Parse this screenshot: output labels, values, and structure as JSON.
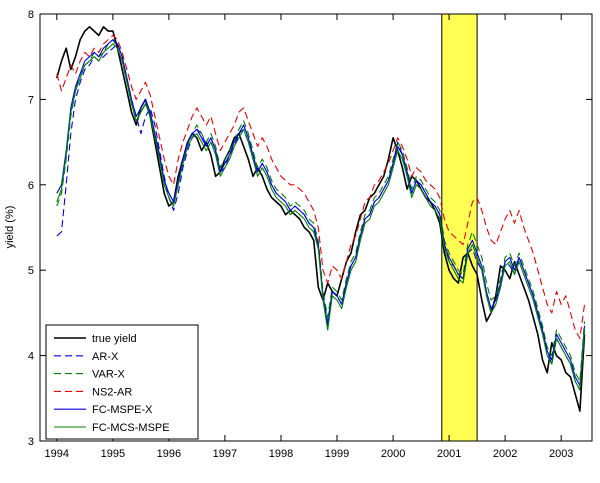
{
  "figure": {
    "background": "#ffffff",
    "ylabel": "yield (%)",
    "x_ticks": [
      1994,
      1995,
      1996,
      1997,
      1998,
      1999,
      2000,
      2001,
      2002,
      2003
    ],
    "y_ticks": [
      3,
      4,
      5,
      6,
      7,
      8
    ],
    "x_range": [
      1993.7,
      2003.55
    ],
    "y_range": [
      3,
      8
    ],
    "highlight_band": {
      "x_start": 2000.87,
      "x_end": 2001.5,
      "color": "#ffff54",
      "border": "#000000"
    },
    "legend_position": "bottom-left"
  },
  "chart_data": {
    "type": "line",
    "title": "",
    "xlabel": "",
    "ylabel": "yield (%)",
    "x_start": 1994.0,
    "points_per_year": 12,
    "x_end": 2003.42,
    "grid": false,
    "legend_position": "bottom-left",
    "series": [
      {
        "name": "true yield",
        "color": "#000000",
        "dash": "solid",
        "width": 1.6,
        "values": [
          7.25,
          7.45,
          7.6,
          7.35,
          7.5,
          7.7,
          7.8,
          7.85,
          7.8,
          7.75,
          7.85,
          7.8,
          7.8,
          7.6,
          7.35,
          7.1,
          6.85,
          6.7,
          6.9,
          7.0,
          6.8,
          6.5,
          6.2,
          5.9,
          5.75,
          5.8,
          6.1,
          6.3,
          6.5,
          6.6,
          6.55,
          6.4,
          6.5,
          6.35,
          6.1,
          6.15,
          6.3,
          6.4,
          6.55,
          6.6,
          6.45,
          6.3,
          6.1,
          6.2,
          6.1,
          5.95,
          5.85,
          5.8,
          5.75,
          5.65,
          5.7,
          5.65,
          5.6,
          5.5,
          5.45,
          5.35,
          4.8,
          4.65,
          4.85,
          4.75,
          4.7,
          4.9,
          5.1,
          5.2,
          5.45,
          5.65,
          5.7,
          5.85,
          5.9,
          6.0,
          6.1,
          6.3,
          6.55,
          6.4,
          6.2,
          5.95,
          6.1,
          6.05,
          5.95,
          5.85,
          5.8,
          5.7,
          5.55,
          5.2,
          5.0,
          4.9,
          4.85,
          5.15,
          5.2,
          5.05,
          4.95,
          4.65,
          4.4,
          4.5,
          4.7,
          5.05,
          5.0,
          4.9,
          5.1,
          4.95,
          4.8,
          4.65,
          4.45,
          4.25,
          3.95,
          3.8,
          4.15,
          4.0,
          3.95,
          3.8,
          3.75,
          3.55,
          3.35,
          4.25
        ]
      },
      {
        "name": "AR-X",
        "color": "#0000ee",
        "dash": "dashed",
        "width": 1.1,
        "values": [
          5.4,
          5.45,
          6.0,
          6.6,
          7.0,
          7.2,
          7.35,
          7.4,
          7.5,
          7.45,
          7.5,
          7.55,
          7.6,
          7.65,
          7.5,
          7.25,
          7.0,
          6.8,
          6.6,
          6.8,
          6.9,
          6.7,
          6.4,
          6.1,
          5.85,
          5.7,
          5.9,
          6.2,
          6.4,
          6.55,
          6.65,
          6.6,
          6.45,
          6.55,
          6.4,
          6.15,
          6.2,
          6.35,
          6.45,
          6.6,
          6.65,
          6.5,
          6.35,
          6.15,
          6.25,
          6.15,
          6.0,
          5.9,
          5.85,
          5.8,
          5.7,
          5.75,
          5.7,
          5.65,
          5.55,
          5.5,
          5.3,
          4.7,
          4.4,
          4.75,
          4.7,
          4.6,
          4.85,
          5.05,
          5.15,
          5.4,
          5.6,
          5.65,
          5.8,
          5.85,
          5.95,
          6.05,
          6.25,
          6.5,
          6.35,
          6.15,
          5.9,
          6.05,
          6.0,
          5.9,
          5.8,
          5.75,
          5.65,
          5.3,
          5.1,
          5.05,
          4.95,
          4.9,
          5.2,
          5.25,
          5.1,
          5.0,
          4.7,
          4.5,
          4.6,
          4.8,
          5.1,
          5.05,
          4.95,
          5.15,
          5.0,
          4.85,
          4.7,
          4.5,
          4.3,
          4.05,
          3.9,
          4.2,
          4.1,
          4.0,
          3.9,
          3.7,
          3.6,
          4.3
        ]
      },
      {
        "name": "VAR-X",
        "color": "#008000",
        "dash": "dashed",
        "width": 1.1,
        "values": [
          5.75,
          5.9,
          6.3,
          6.8,
          7.1,
          7.3,
          7.4,
          7.45,
          7.55,
          7.5,
          7.55,
          7.65,
          7.7,
          7.6,
          7.45,
          7.2,
          6.95,
          6.75,
          6.85,
          6.95,
          6.85,
          6.6,
          6.3,
          6.05,
          5.9,
          5.8,
          6.0,
          6.25,
          6.45,
          6.6,
          6.7,
          6.6,
          6.5,
          6.6,
          6.45,
          6.2,
          6.3,
          6.4,
          6.5,
          6.65,
          6.75,
          6.6,
          6.4,
          6.2,
          6.3,
          6.2,
          6.05,
          5.95,
          5.9,
          5.85,
          5.75,
          5.8,
          5.75,
          5.7,
          5.6,
          5.55,
          5.35,
          4.75,
          4.45,
          4.8,
          4.75,
          4.65,
          4.9,
          5.1,
          5.2,
          5.45,
          5.65,
          5.7,
          5.85,
          5.9,
          6.0,
          6.1,
          6.3,
          6.5,
          6.4,
          6.2,
          5.95,
          6.1,
          6.05,
          5.95,
          5.85,
          5.8,
          5.7,
          5.35,
          5.2,
          5.1,
          5.0,
          4.95,
          5.3,
          5.45,
          5.3,
          5.15,
          4.85,
          4.65,
          4.7,
          4.9,
          5.15,
          5.2,
          5.05,
          5.2,
          5.05,
          4.9,
          4.75,
          4.55,
          4.35,
          4.1,
          4.0,
          4.3,
          4.2,
          4.1,
          4.0,
          3.8,
          3.7,
          4.4
        ]
      },
      {
        "name": "NS2-AR",
        "color": "#ee0000",
        "dash": "dashed",
        "width": 1.1,
        "values": [
          7.3,
          7.1,
          7.25,
          7.4,
          7.3,
          7.45,
          7.55,
          7.5,
          7.6,
          7.55,
          7.65,
          7.7,
          7.75,
          7.7,
          7.55,
          7.35,
          7.15,
          7.0,
          7.1,
          7.2,
          7.05,
          6.8,
          6.55,
          6.3,
          6.1,
          6.0,
          6.3,
          6.5,
          6.65,
          6.8,
          6.9,
          6.8,
          6.7,
          6.8,
          6.6,
          6.4,
          6.5,
          6.6,
          6.7,
          6.85,
          6.9,
          6.75,
          6.6,
          6.45,
          6.55,
          6.45,
          6.3,
          6.2,
          6.1,
          6.05,
          6.0,
          6.0,
          5.95,
          5.9,
          5.8,
          5.7,
          5.5,
          5.0,
          4.85,
          5.05,
          5.0,
          4.9,
          5.1,
          5.3,
          5.4,
          5.6,
          5.8,
          5.85,
          6.0,
          6.05,
          6.15,
          6.25,
          6.4,
          6.55,
          6.45,
          6.3,
          6.1,
          6.2,
          6.15,
          6.05,
          6.0,
          5.95,
          5.85,
          5.6,
          5.45,
          5.4,
          5.35,
          5.3,
          5.55,
          5.8,
          5.85,
          5.7,
          5.5,
          5.35,
          5.3,
          5.45,
          5.6,
          5.7,
          5.55,
          5.7,
          5.5,
          5.35,
          5.2,
          5.0,
          4.8,
          4.6,
          4.5,
          4.75,
          4.6,
          4.7,
          4.5,
          4.3,
          4.2,
          4.6
        ]
      },
      {
        "name": "FC-MSPE-X",
        "color": "#0000ee",
        "dash": "solid",
        "width": 1.1,
        "values": [
          5.9,
          6.0,
          6.4,
          6.9,
          7.15,
          7.3,
          7.45,
          7.5,
          7.55,
          7.5,
          7.6,
          7.65,
          7.7,
          7.65,
          7.5,
          7.25,
          7.0,
          6.8,
          6.9,
          7.0,
          6.85,
          6.6,
          6.35,
          6.05,
          5.9,
          5.8,
          6.05,
          6.3,
          6.5,
          6.6,
          6.65,
          6.55,
          6.45,
          6.55,
          6.4,
          6.15,
          6.25,
          6.35,
          6.5,
          6.6,
          6.7,
          6.55,
          6.35,
          6.15,
          6.25,
          6.15,
          6.0,
          5.9,
          5.85,
          5.8,
          5.7,
          5.75,
          5.7,
          5.65,
          5.55,
          5.5,
          5.3,
          4.7,
          4.35,
          4.75,
          4.7,
          4.6,
          4.85,
          5.05,
          5.15,
          5.4,
          5.6,
          5.65,
          5.8,
          5.85,
          5.95,
          6.05,
          6.25,
          6.45,
          6.35,
          6.15,
          5.9,
          6.05,
          6.0,
          5.9,
          5.8,
          5.75,
          5.65,
          5.3,
          5.15,
          5.05,
          4.95,
          4.9,
          5.25,
          5.35,
          5.2,
          5.05,
          4.75,
          4.55,
          4.65,
          4.85,
          5.1,
          5.15,
          5.0,
          5.15,
          5.0,
          4.85,
          4.7,
          4.5,
          4.3,
          4.05,
          3.95,
          4.25,
          4.15,
          4.05,
          3.95,
          3.75,
          3.65,
          4.35
        ]
      },
      {
        "name": "FC-MCS-MSPE",
        "color": "#008000",
        "dash": "solid",
        "width": 1.1,
        "values": [
          5.8,
          5.95,
          6.35,
          6.85,
          7.1,
          7.25,
          7.4,
          7.45,
          7.5,
          7.45,
          7.55,
          7.6,
          7.65,
          7.6,
          7.45,
          7.2,
          6.95,
          6.75,
          6.85,
          6.95,
          6.8,
          6.55,
          6.3,
          6.0,
          5.85,
          5.75,
          6.0,
          6.25,
          6.45,
          6.55,
          6.6,
          6.5,
          6.4,
          6.5,
          6.35,
          6.1,
          6.2,
          6.3,
          6.45,
          6.55,
          6.65,
          6.5,
          6.3,
          6.1,
          6.2,
          6.1,
          5.95,
          5.85,
          5.8,
          5.75,
          5.65,
          5.7,
          5.65,
          5.6,
          5.5,
          5.45,
          5.25,
          4.65,
          4.3,
          4.7,
          4.65,
          4.55,
          4.8,
          5.0,
          5.1,
          5.35,
          5.55,
          5.6,
          5.75,
          5.8,
          5.9,
          6.0,
          6.2,
          6.4,
          6.3,
          6.1,
          5.85,
          6.0,
          5.95,
          5.85,
          5.75,
          5.7,
          5.6,
          5.25,
          5.1,
          5.0,
          4.9,
          4.85,
          5.2,
          5.3,
          5.15,
          5.0,
          4.7,
          4.5,
          4.6,
          4.8,
          5.05,
          5.1,
          4.95,
          5.1,
          4.95,
          4.8,
          4.65,
          4.45,
          4.25,
          4.0,
          3.9,
          4.2,
          4.1,
          4.0,
          3.9,
          3.7,
          3.6,
          4.3
        ]
      }
    ]
  }
}
